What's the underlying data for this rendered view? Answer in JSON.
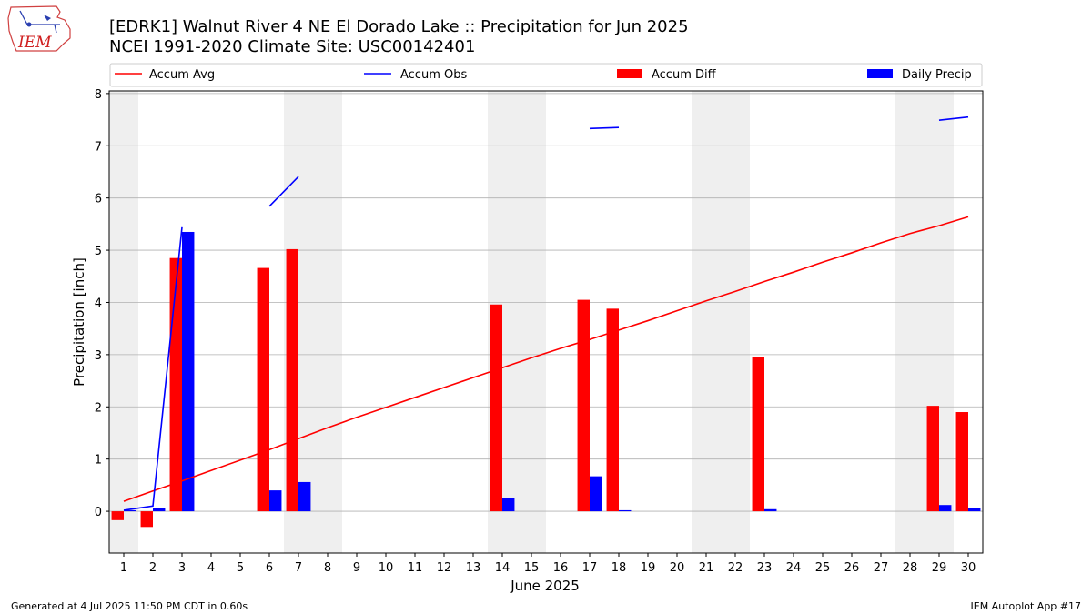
{
  "header": {
    "title_line1": "[EDRK1] Walnut River 4 NE El Dorado Lake :: Precipitation for Jun 2025",
    "title_line2": "NCEI 1991-2020 Climate Site: USC00142401",
    "logo_text": "IEM"
  },
  "footer": {
    "generated": "Generated at 4 Jul 2025 11:50 PM CDT in 0.60s",
    "app": "IEM Autoplot App #17"
  },
  "colors": {
    "avg": "#ff0000",
    "obs": "#0000ff",
    "diff": "#ff0000",
    "daily": "#0000ff",
    "weekend": "#efefef",
    "grid": "#b0b0b0"
  },
  "chart_data": {
    "type": "bar",
    "xlabel": "June 2025",
    "ylabel": "Precipitation [inch]",
    "xlim": [
      0.5,
      30.5
    ],
    "ylim": [
      -0.8,
      8.05
    ],
    "yticks": [
      0,
      1,
      2,
      3,
      4,
      5,
      6,
      7,
      8
    ],
    "grid": true,
    "legend": {
      "placement": "top",
      "entries": [
        "Accum Avg",
        "Accum Obs",
        "Accum Diff",
        "Daily Precip"
      ]
    },
    "days": [
      1,
      2,
      3,
      4,
      5,
      6,
      7,
      8,
      9,
      10,
      11,
      12,
      13,
      14,
      15,
      16,
      17,
      18,
      19,
      20,
      21,
      22,
      23,
      24,
      25,
      26,
      27,
      28,
      29,
      30
    ],
    "weekend_spans": [
      [
        0.5,
        1.5
      ],
      [
        6.5,
        8.5
      ],
      [
        13.5,
        15.5
      ],
      [
        20.5,
        22.5
      ],
      [
        27.5,
        29.5
      ]
    ],
    "series": [
      {
        "name": "Accum Avg",
        "kind": "line",
        "x": [
          1,
          2,
          3,
          4,
          5,
          6,
          7,
          8,
          9,
          10,
          11,
          12,
          13,
          14,
          15,
          16,
          17,
          18,
          19,
          20,
          21,
          22,
          23,
          24,
          25,
          26,
          27,
          28,
          29,
          30
        ],
        "values": [
          0.19,
          0.39,
          0.58,
          0.78,
          0.98,
          1.18,
          1.39,
          1.6,
          1.8,
          1.99,
          2.18,
          2.37,
          2.56,
          2.75,
          2.94,
          3.12,
          3.29,
          3.47,
          3.65,
          3.84,
          4.03,
          4.21,
          4.4,
          4.58,
          4.77,
          4.95,
          5.14,
          5.32,
          5.47,
          5.64
        ]
      },
      {
        "name": "Accum Obs",
        "kind": "line",
        "segments": [
          {
            "x": [
              1,
              2,
              3
            ],
            "values": [
              0.02,
              0.1,
              5.44
            ]
          },
          {
            "x": [
              6,
              7
            ],
            "values": [
              5.84,
              6.41
            ]
          },
          {
            "x": [
              17,
              18
            ],
            "values": [
              7.33,
              7.35
            ]
          },
          {
            "x": [
              29,
              30
            ],
            "values": [
              7.49,
              7.55
            ]
          }
        ]
      },
      {
        "name": "Accum Diff",
        "kind": "bar",
        "x": [
          1,
          2,
          3,
          6,
          7,
          14,
          17,
          18,
          23,
          29,
          30
        ],
        "values": [
          -0.17,
          -0.3,
          4.85,
          4.66,
          5.02,
          3.96,
          4.05,
          3.88,
          2.96,
          2.02,
          1.9
        ]
      },
      {
        "name": "Daily Precip",
        "kind": "bar",
        "x": [
          1,
          2,
          3,
          6,
          7,
          14,
          17,
          18,
          23,
          29,
          30
        ],
        "values": [
          0.02,
          0.07,
          5.35,
          0.4,
          0.56,
          0.26,
          0.67,
          0.02,
          0.04,
          0.12,
          0.06
        ]
      }
    ]
  }
}
